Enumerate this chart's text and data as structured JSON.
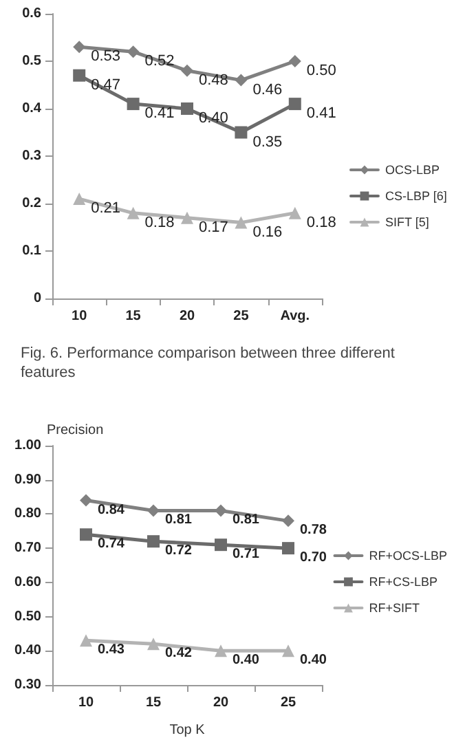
{
  "chart_data": [
    {
      "type": "line",
      "categories": [
        "10",
        "15",
        "20",
        "25",
        "Avg."
      ],
      "ylim": [
        0,
        0.6
      ],
      "yticks": [
        0,
        0.1,
        0.2,
        0.3,
        0.4,
        0.5,
        0.6
      ],
      "legend": "right",
      "annotations": [
        "Fig. 6. Performance comparison between three different features"
      ],
      "series": [
        {
          "name": "OCS-LBP",
          "color": "#808080",
          "marker": "diamond",
          "values": [
            0.53,
            0.52,
            0.48,
            0.46,
            0.5
          ],
          "value_labels": [
            "0.53",
            "0.52",
            "0.48",
            "0.46",
            "0.50"
          ]
        },
        {
          "name": "CS-LBP [6]",
          "color": "#6b6b6b",
          "marker": "square",
          "values": [
            0.47,
            0.41,
            0.4,
            0.35,
            0.41
          ],
          "value_labels": [
            "0.47",
            "0.41",
            "0.40",
            "0.35",
            "0.41"
          ]
        },
        {
          "name": "SIFT [5]",
          "color": "#b3b3b3",
          "marker": "triangle",
          "values": [
            0.21,
            0.18,
            0.17,
            0.16,
            0.18
          ],
          "value_labels": [
            "0.21",
            "0.18",
            "0.17",
            "0.16",
            "0.18"
          ]
        }
      ]
    },
    {
      "type": "line",
      "categories": [
        "10",
        "15",
        "20",
        "25"
      ],
      "ylabel": "Precision",
      "xlabel": "Top K",
      "ylim": [
        0.3,
        1.0
      ],
      "yticks": [
        {
          "value": 0.3,
          "label": "0.30"
        },
        {
          "value": 0.4,
          "label": "0.40"
        },
        {
          "value": 0.5,
          "label": "0.50"
        },
        {
          "value": 0.6,
          "label": "0.60"
        },
        {
          "value": 0.7,
          "label": "0.70"
        },
        {
          "value": 0.8,
          "label": "0.80"
        },
        {
          "value": 0.9,
          "label": "0.90"
        },
        {
          "value": 1.0,
          "label": "1.00"
        }
      ],
      "legend": "right",
      "series": [
        {
          "name": "RF+OCS-LBP",
          "color": "#808080",
          "marker": "diamond",
          "values": [
            0.84,
            0.81,
            0.81,
            0.78
          ],
          "value_labels": [
            "0.84",
            "0.81",
            "0.81",
            "0.78"
          ]
        },
        {
          "name": "RF+CS-LBP",
          "color": "#6b6b6b",
          "marker": "square",
          "values": [
            0.74,
            0.72,
            0.71,
            0.7
          ],
          "value_labels": [
            "0.74",
            "0.72",
            "0.71",
            "0.70"
          ]
        },
        {
          "name": "RF+SIFT",
          "color": "#b3b3b3",
          "marker": "triangle",
          "values": [
            0.43,
            0.42,
            0.4,
            0.4
          ],
          "value_labels": [
            "0.43",
            "0.42",
            "0.40",
            "0.40"
          ]
        }
      ]
    }
  ]
}
